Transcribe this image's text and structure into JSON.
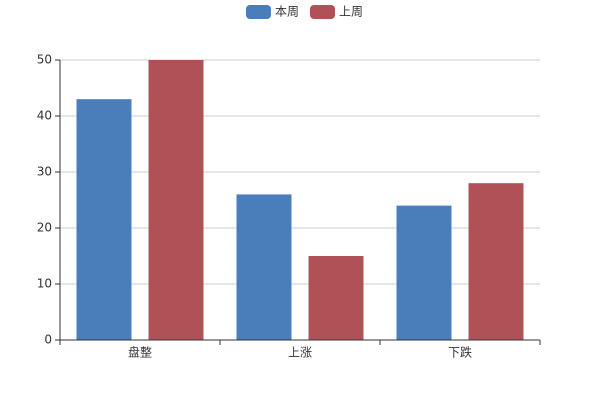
{
  "chart_data": {
    "type": "bar",
    "categories": [
      "盘整",
      "上涨",
      "下跌"
    ],
    "series": [
      {
        "name": "本周",
        "color": "#4a7ebb",
        "values": [
          43,
          26,
          24
        ]
      },
      {
        "name": "上周",
        "color": "#b05057",
        "values": [
          50,
          15,
          28
        ]
      }
    ],
    "ylim": [
      0,
      50
    ],
    "yticks": [
      0,
      10,
      20,
      30,
      40,
      50
    ],
    "grid": true,
    "legend": "top"
  }
}
